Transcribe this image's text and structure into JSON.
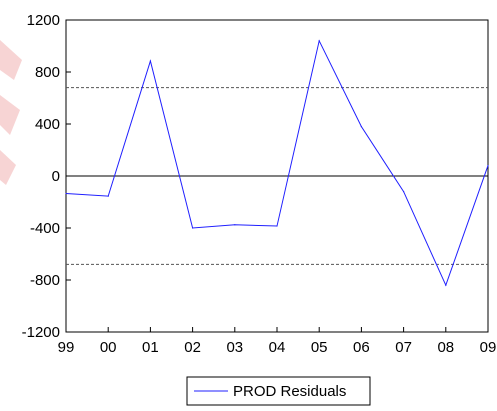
{
  "chart_data": {
    "type": "line",
    "title": "",
    "xlabel": "",
    "ylabel": "",
    "categories": [
      "99",
      "00",
      "01",
      "02",
      "03",
      "04",
      "05",
      "06",
      "07",
      "08",
      "09"
    ],
    "series": [
      {
        "name": "PROD Residuals",
        "values": [
          -135,
          -155,
          885,
          -400,
          -375,
          -385,
          1040,
          380,
          -120,
          -840,
          80
        ],
        "color": "#1f1fff"
      }
    ],
    "ylim": [
      -1200,
      1200
    ],
    "yticks": [
      -1200,
      -800,
      -400,
      0,
      400,
      800,
      1200
    ],
    "ytick_labels": [
      "-1200",
      "-800",
      "-400",
      "0",
      "400",
      "800",
      "1200"
    ],
    "reference_lines": {
      "zero": 0,
      "upper_dashed": 680,
      "lower_dashed": -680
    },
    "grid": false,
    "legend_position": "bottom-center",
    "colors": {
      "series": "#1f1fff",
      "axes": "#000000",
      "dashed": "#555555",
      "watermark": "#f2b8b8"
    }
  }
}
